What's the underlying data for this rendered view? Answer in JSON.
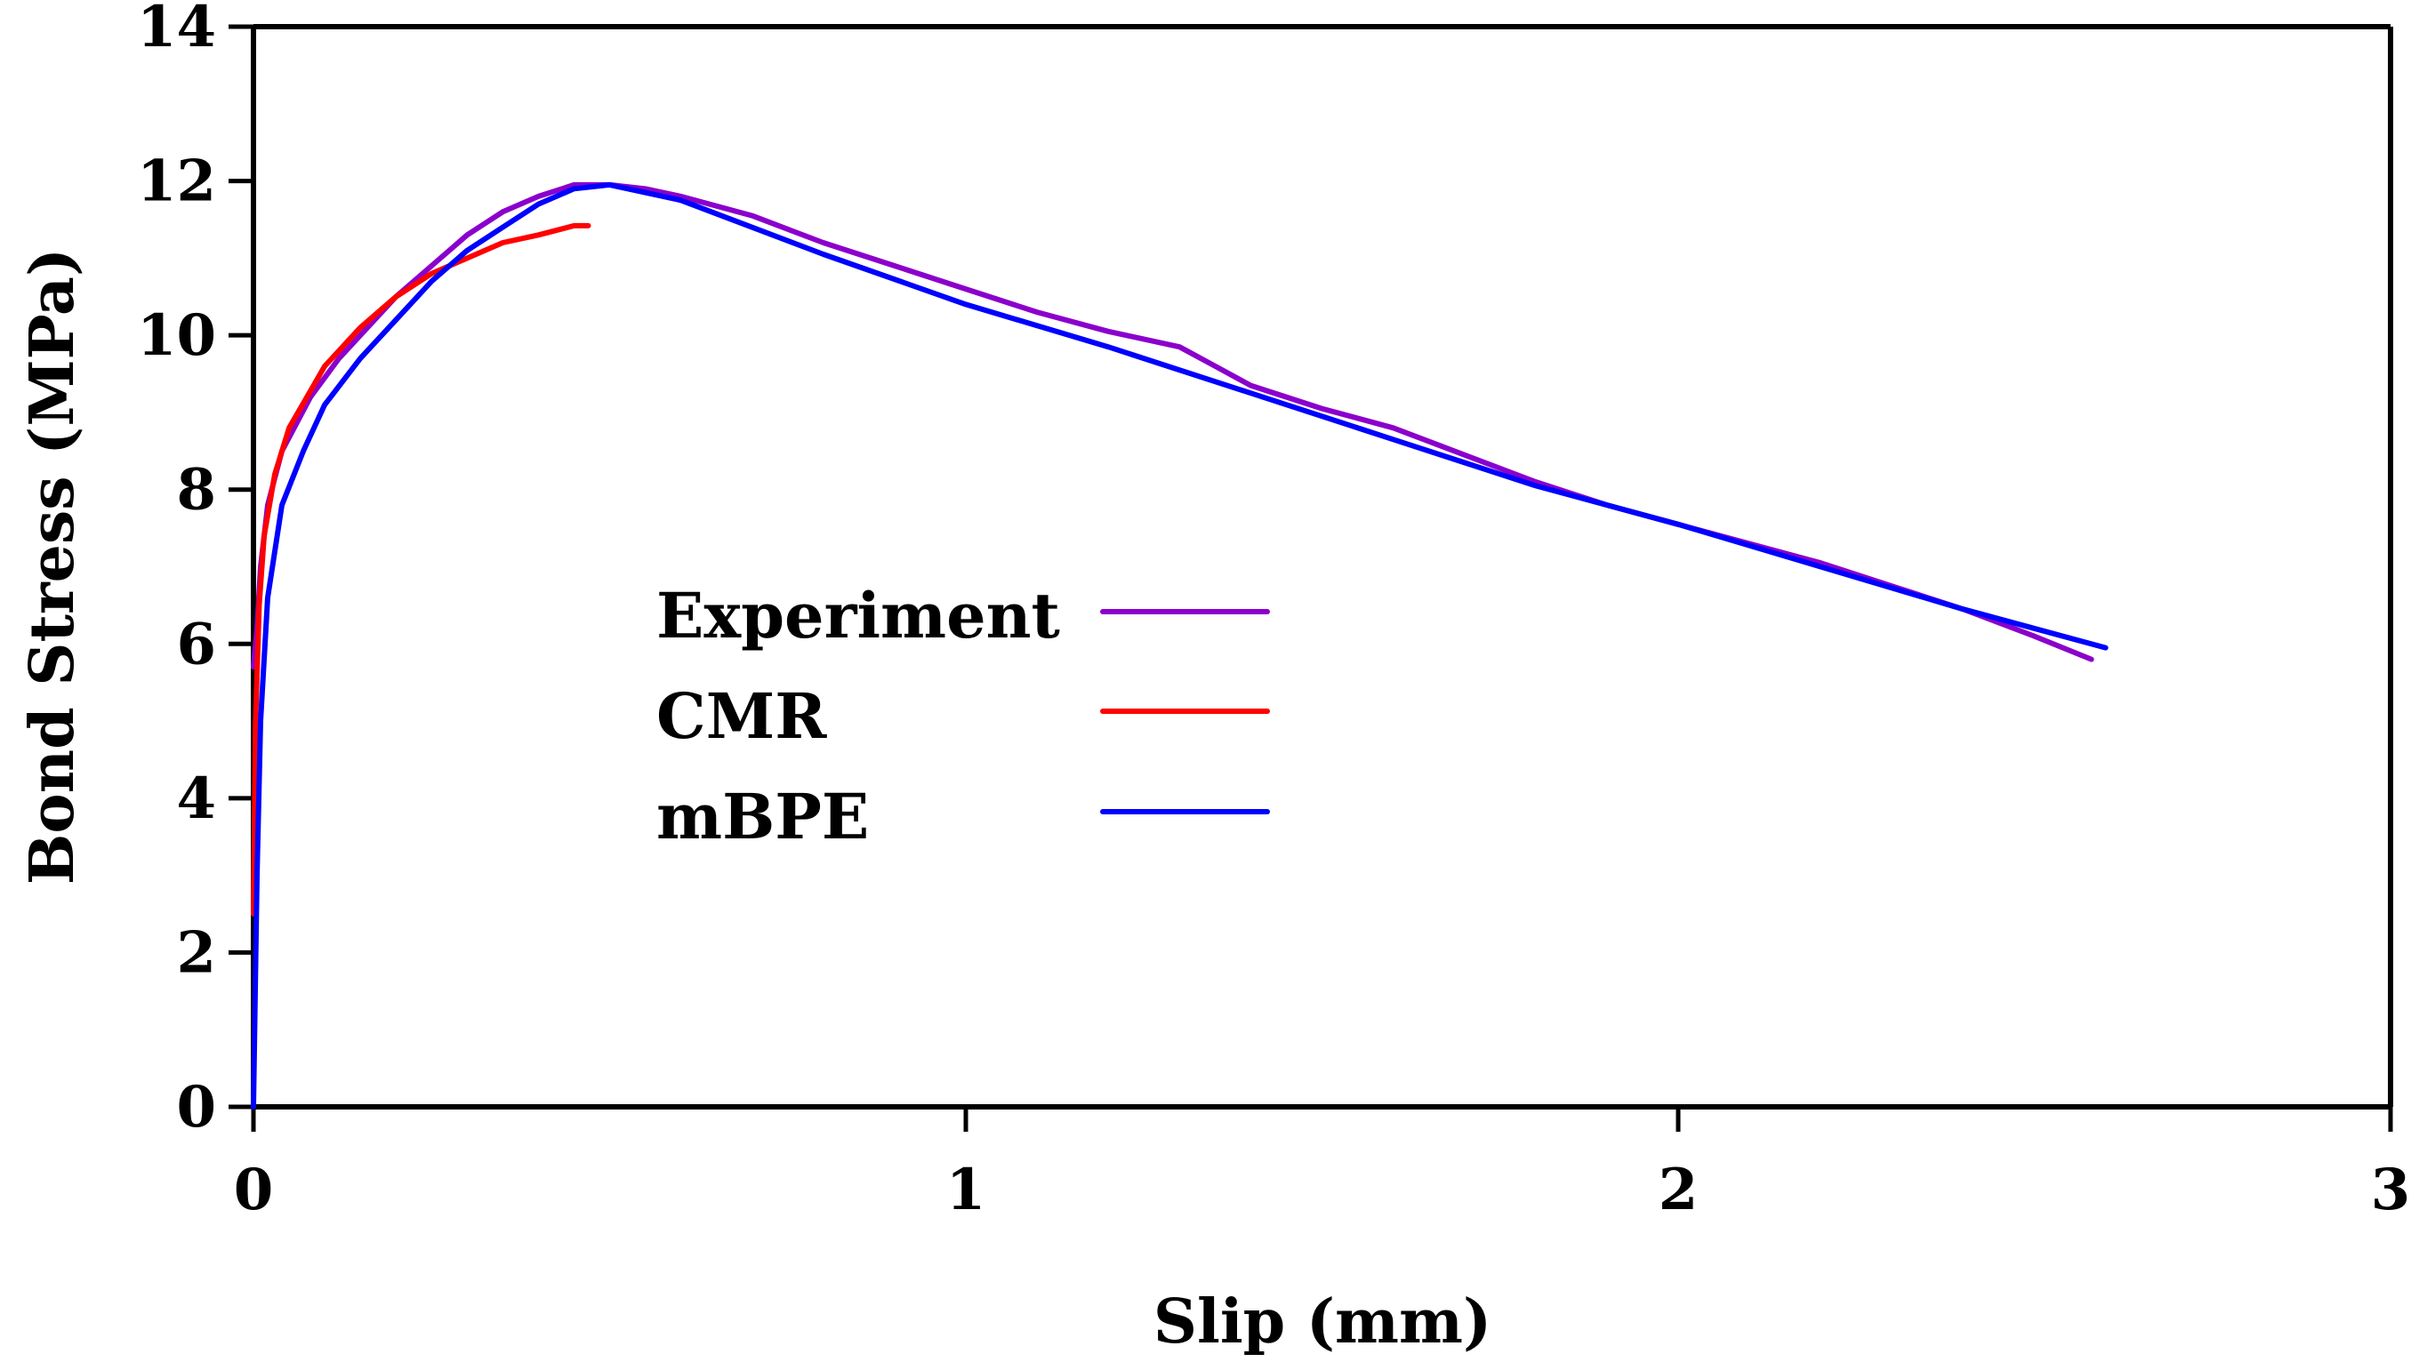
{
  "chart_data": {
    "type": "line",
    "title": "",
    "xlabel": "Slip (mm)",
    "ylabel": "Bond Stress (MPa)",
    "xlim": [
      0,
      3
    ],
    "ylim": [
      0,
      14
    ],
    "xticks": [
      0,
      1,
      2,
      3
    ],
    "yticks": [
      0,
      2,
      4,
      6,
      8,
      10,
      12,
      14
    ],
    "grid": false,
    "legend_position": "center-left",
    "series": [
      {
        "name": "Experiment",
        "color": "#8b00cc",
        "x": [
          0,
          0.005,
          0.01,
          0.02,
          0.04,
          0.08,
          0.12,
          0.16,
          0.2,
          0.25,
          0.3,
          0.35,
          0.4,
          0.45,
          0.5,
          0.55,
          0.6,
          0.7,
          0.8,
          0.9,
          1.0,
          1.1,
          1.2,
          1.3,
          1.35,
          1.4,
          1.5,
          1.6,
          1.7,
          1.8,
          1.9,
          2.0,
          2.1,
          2.2,
          2.3,
          2.4,
          2.5,
          2.58
        ],
        "y": [
          5.7,
          6.2,
          7.0,
          7.8,
          8.5,
          9.2,
          9.7,
          10.1,
          10.5,
          10.9,
          11.3,
          11.6,
          11.8,
          11.95,
          11.95,
          11.9,
          11.8,
          11.55,
          11.2,
          10.9,
          10.6,
          10.3,
          10.05,
          9.85,
          9.6,
          9.35,
          9.05,
          8.8,
          8.45,
          8.1,
          7.8,
          7.55,
          7.3,
          7.05,
          6.75,
          6.45,
          6.1,
          5.8
        ]
      },
      {
        "name": "CMR",
        "color": "#ff0000",
        "x": [
          0,
          0.003,
          0.008,
          0.015,
          0.03,
          0.05,
          0.075,
          0.1,
          0.15,
          0.2,
          0.25,
          0.3,
          0.35,
          0.4,
          0.45,
          0.47
        ],
        "y": [
          2.5,
          5.0,
          6.5,
          7.4,
          8.2,
          8.8,
          9.2,
          9.6,
          10.1,
          10.5,
          10.8,
          11.0,
          11.2,
          11.3,
          11.42,
          11.42
        ]
      },
      {
        "name": "mBPE",
        "color": "#0000ff",
        "x": [
          0,
          0.005,
          0.01,
          0.02,
          0.04,
          0.07,
          0.1,
          0.15,
          0.2,
          0.25,
          0.3,
          0.35,
          0.4,
          0.45,
          0.5,
          0.6,
          0.8,
          1.0,
          1.2,
          1.4,
          1.6,
          1.8,
          2.0,
          2.2,
          2.4,
          2.6
        ],
        "y": [
          0,
          3.0,
          5.0,
          6.6,
          7.8,
          8.5,
          9.1,
          9.7,
          10.2,
          10.7,
          11.1,
          11.4,
          11.7,
          11.9,
          11.95,
          11.75,
          11.05,
          10.4,
          9.85,
          9.25,
          8.65,
          8.05,
          7.55,
          7.0,
          6.45,
          5.95
        ]
      }
    ]
  }
}
